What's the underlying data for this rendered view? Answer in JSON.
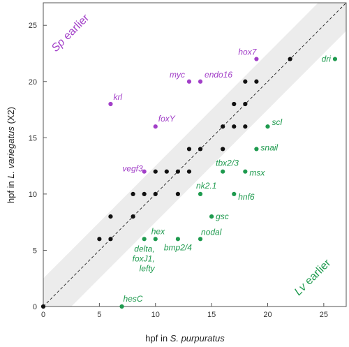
{
  "colors": {
    "sp_earlier": "#a23fc8",
    "lv_earlier": "#1e9a4e",
    "shared": "#111111",
    "band": "#ececec",
    "axis": "#555555"
  },
  "chart_data": {
    "type": "scatter",
    "xlabel": {
      "prefix": "hpf in ",
      "species": "S. purpuratus"
    },
    "ylabel": {
      "prefix": "hpf in ",
      "species": "L. variegatus",
      "suffix": " (X2)"
    },
    "xlim": [
      0,
      27
    ],
    "ylim": [
      0,
      27
    ],
    "xticks": [
      0,
      5,
      10,
      15,
      20,
      25
    ],
    "yticks": [
      0,
      5,
      10,
      15,
      20,
      25
    ],
    "grid": false,
    "diagonal": {
      "line": "y = x",
      "style": "dashed",
      "band_halfwidth": 2.5
    },
    "region_labels": [
      {
        "text": "Sp earlier",
        "italic_part": "Sp",
        "rest": " earlier",
        "color_key": "sp_earlier",
        "placement": "top-left"
      },
      {
        "text": "Lv earlier",
        "italic_part": "Lv",
        "rest": " earlier",
        "color_key": "lv_earlier",
        "placement": "bottom-right"
      }
    ],
    "series": [
      {
        "color_key": "shared",
        "marker": "circle",
        "points": [
          {
            "x": 0,
            "y": 0
          },
          {
            "x": 5,
            "y": 6
          },
          {
            "x": 6,
            "y": 6
          },
          {
            "x": 6,
            "y": 8
          },
          {
            "x": 8,
            "y": 8
          },
          {
            "x": 8,
            "y": 10
          },
          {
            "x": 9,
            "y": 10
          },
          {
            "x": 10,
            "y": 10
          },
          {
            "x": 10,
            "y": 12
          },
          {
            "x": 11,
            "y": 12
          },
          {
            "x": 12,
            "y": 10
          },
          {
            "x": 12,
            "y": 12
          },
          {
            "x": 13,
            "y": 12
          },
          {
            "x": 13,
            "y": 14
          },
          {
            "x": 14,
            "y": 14
          },
          {
            "x": 16,
            "y": 14
          },
          {
            "x": 16,
            "y": 16
          },
          {
            "x": 17,
            "y": 16
          },
          {
            "x": 17,
            "y": 18
          },
          {
            "x": 18,
            "y": 16
          },
          {
            "x": 18,
            "y": 18
          },
          {
            "x": 18,
            "y": 20
          },
          {
            "x": 19,
            "y": 20
          },
          {
            "x": 22,
            "y": 22
          }
        ]
      },
      {
        "color_key": "sp_earlier",
        "marker": "circle",
        "points": [
          {
            "x": 6,
            "y": 18,
            "label": "krl",
            "anchor": "start",
            "dx": 4,
            "dy": -6
          },
          {
            "x": 10,
            "y": 16,
            "label": "foxY",
            "anchor": "start",
            "dx": 4,
            "dy": -7
          },
          {
            "x": 9,
            "y": 12,
            "label": "vegf3",
            "anchor": "end",
            "dx": -2,
            "dy": 0
          },
          {
            "x": 13,
            "y": 20,
            "label": "myc",
            "anchor": "end",
            "dx": -6,
            "dy": -6
          },
          {
            "x": 14,
            "y": 20,
            "label": "endo16",
            "anchor": "start",
            "dx": 6,
            "dy": -6
          },
          {
            "x": 19,
            "y": 22,
            "label": "hox7",
            "anchor": "end",
            "dx": 0,
            "dy": -6
          }
        ]
      },
      {
        "color_key": "lv_earlier",
        "marker": "circle",
        "points": [
          {
            "x": 7,
            "y": 0,
            "label": "hesC",
            "anchor": "start",
            "dx": 2,
            "dy": -7
          },
          {
            "x": 9,
            "y": 6,
            "label": "delta, foxJ1, lefty",
            "lines": [
              "delta,",
              "foxJ1,",
              "lefty"
            ],
            "anchor": "end",
            "dx": 15,
            "dy": 18
          },
          {
            "x": 10,
            "y": 6,
            "label": "hex",
            "anchor": "start",
            "dx": -6,
            "dy": -7
          },
          {
            "x": 12,
            "y": 6,
            "label": "bmp2/4",
            "anchor": "start",
            "dx": -20,
            "dy": 16
          },
          {
            "x": 14,
            "y": 6,
            "label": "nodal",
            "anchor": "start",
            "dx": 1,
            "dy": -6
          },
          {
            "x": 15,
            "y": 8,
            "label": "gsc",
            "anchor": "start",
            "dx": 6,
            "dy": 4
          },
          {
            "x": 14,
            "y": 10,
            "label": "nk2.1",
            "anchor": "start",
            "dx": -6,
            "dy": -8
          },
          {
            "x": 16,
            "y": 12,
            "label": "tbx2/3",
            "anchor": "start",
            "dx": -10,
            "dy": -8
          },
          {
            "x": 17,
            "y": 10,
            "label": "hnf6",
            "anchor": "start",
            "dx": 6,
            "dy": 8
          },
          {
            "x": 18,
            "y": 12,
            "label": "msx",
            "anchor": "start",
            "dx": 6,
            "dy": 6
          },
          {
            "x": 19,
            "y": 14,
            "label": "snail",
            "anchor": "start",
            "dx": 6,
            "dy": 2
          },
          {
            "x": 20,
            "y": 16,
            "label": "scl",
            "anchor": "start",
            "dx": 6,
            "dy": -2
          },
          {
            "x": 26,
            "y": 22,
            "label": "dri",
            "anchor": "end",
            "dx": -6,
            "dy": 4
          }
        ]
      }
    ]
  }
}
